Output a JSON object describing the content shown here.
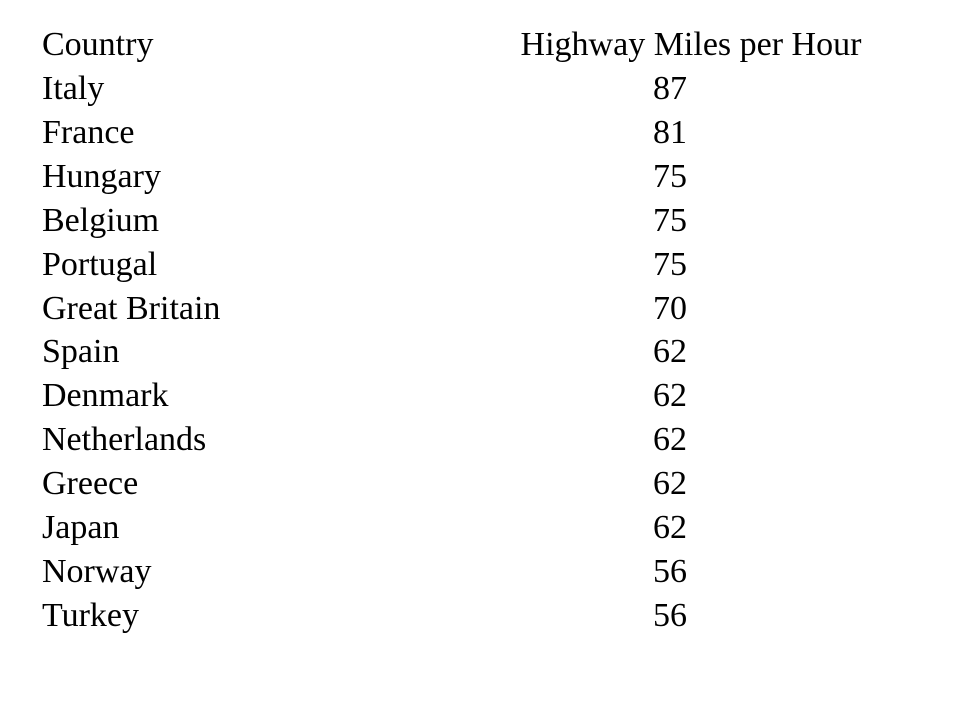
{
  "chart_data": {
    "type": "table",
    "columns": [
      "Country",
      "Highway Miles per Hour"
    ],
    "rows": [
      {
        "country": "Italy",
        "value": "87"
      },
      {
        "country": "France",
        "value": "81"
      },
      {
        "country": "Hungary",
        "value": "75"
      },
      {
        "country": "Belgium",
        "value": "75"
      },
      {
        "country": "Portugal",
        "value": "75"
      },
      {
        "country": "Great Britain",
        "value": "70"
      },
      {
        "country": "Spain",
        "value": "62"
      },
      {
        "country": "Denmark",
        "value": "62"
      },
      {
        "country": "Netherlands",
        "value": "62"
      },
      {
        "country": "Greece",
        "value": "62"
      },
      {
        "country": "Japan",
        "value": "62"
      },
      {
        "country": "Norway",
        "value": "56"
      },
      {
        "country": "Turkey",
        "value": "56"
      }
    ]
  }
}
